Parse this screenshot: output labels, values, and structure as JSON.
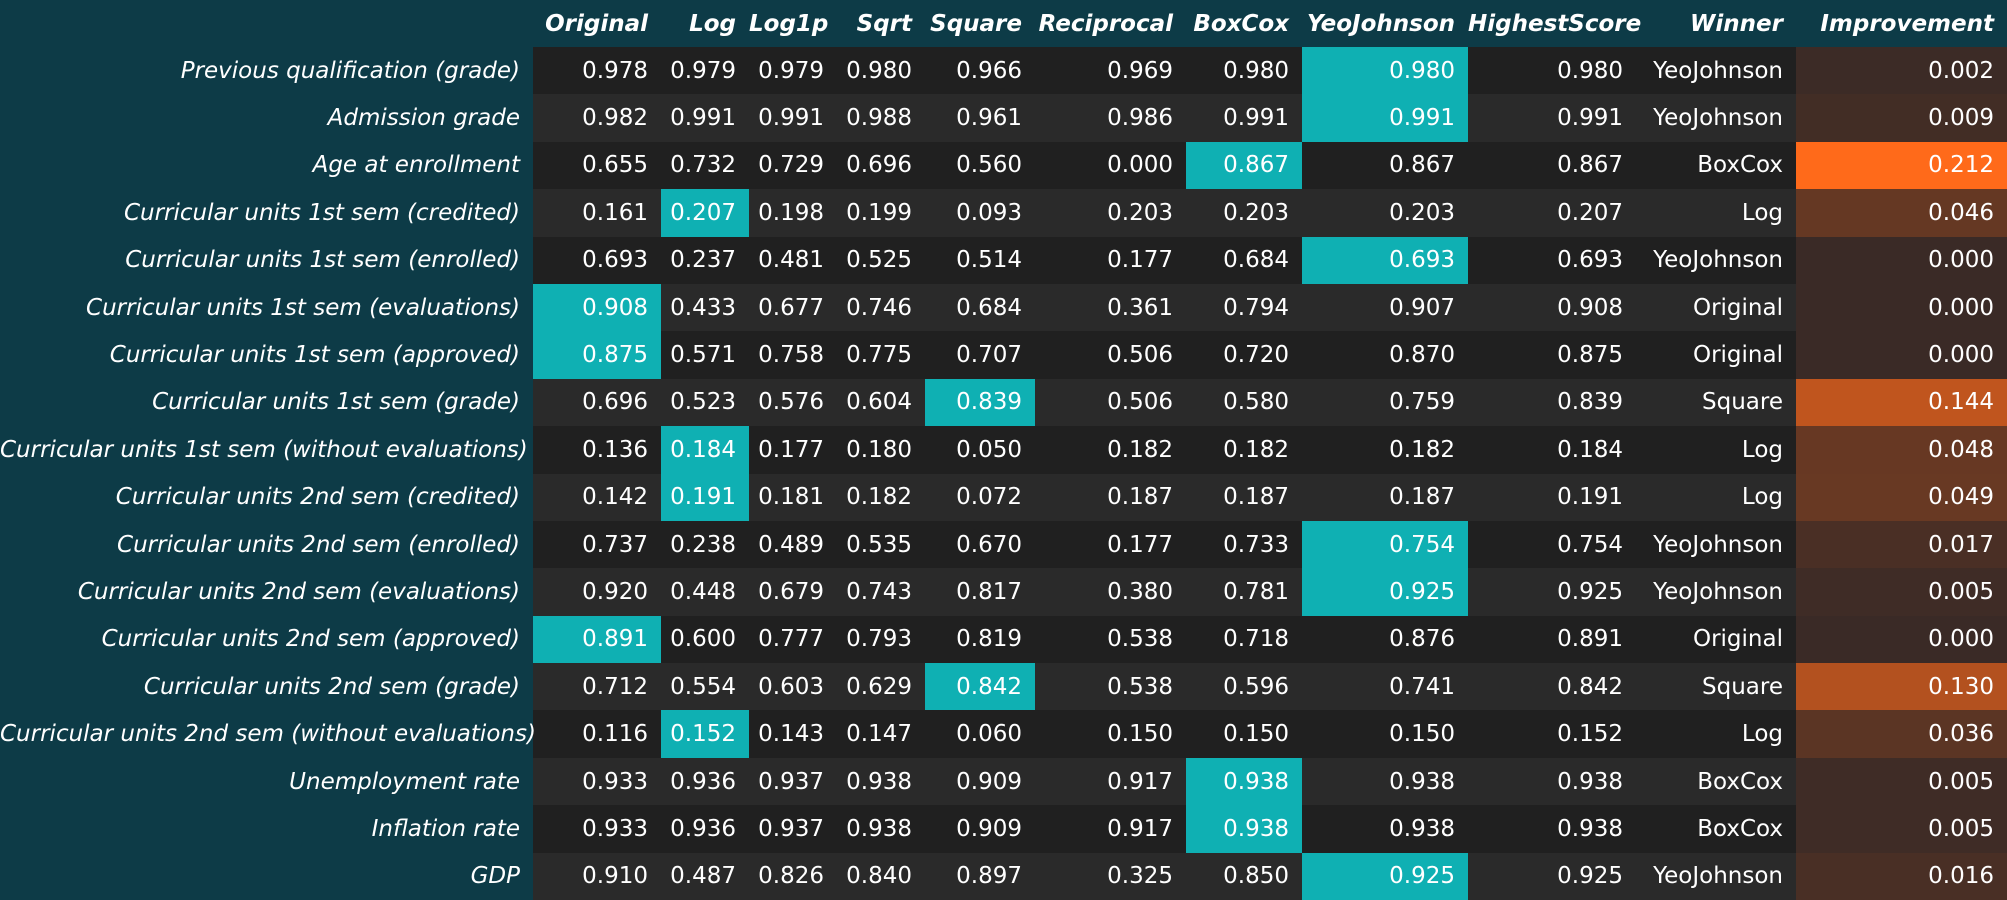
{
  "chart_data": {
    "type": "table",
    "columns": [
      "",
      "Original",
      "Log",
      "Log1p",
      "Sqrt",
      "Square",
      "Reciprocal",
      "BoxCox",
      "YeoJohnson",
      "HighestScore",
      "Winner",
      "Improvement"
    ],
    "score_columns": [
      "Original",
      "Log",
      "Log1p",
      "Sqrt",
      "Square",
      "Reciprocal",
      "BoxCox",
      "YeoJohnson"
    ],
    "rows": [
      {
        "label": "Previous qualification (grade)",
        "scores": [
          "0.978",
          "0.979",
          "0.979",
          "0.980",
          "0.966",
          "0.969",
          "0.980",
          "0.980"
        ],
        "highest": "0.980",
        "winner": "YeoJohnson",
        "improvement": "0.002"
      },
      {
        "label": "Admission grade",
        "scores": [
          "0.982",
          "0.991",
          "0.991",
          "0.988",
          "0.961",
          "0.986",
          "0.991",
          "0.991"
        ],
        "highest": "0.991",
        "winner": "YeoJohnson",
        "improvement": "0.009"
      },
      {
        "label": "Age at enrollment",
        "scores": [
          "0.655",
          "0.732",
          "0.729",
          "0.696",
          "0.560",
          "0.000",
          "0.867",
          "0.867"
        ],
        "highest": "0.867",
        "winner": "BoxCox",
        "improvement": "0.212"
      },
      {
        "label": "Curricular units 1st sem (credited)",
        "scores": [
          "0.161",
          "0.207",
          "0.198",
          "0.199",
          "0.093",
          "0.203",
          "0.203",
          "0.203"
        ],
        "highest": "0.207",
        "winner": "Log",
        "improvement": "0.046"
      },
      {
        "label": "Curricular units 1st sem (enrolled)",
        "scores": [
          "0.693",
          "0.237",
          "0.481",
          "0.525",
          "0.514",
          "0.177",
          "0.684",
          "0.693"
        ],
        "highest": "0.693",
        "winner": "YeoJohnson",
        "improvement": "0.000"
      },
      {
        "label": "Curricular units 1st sem (evaluations)",
        "scores": [
          "0.908",
          "0.433",
          "0.677",
          "0.746",
          "0.684",
          "0.361",
          "0.794",
          "0.907"
        ],
        "highest": "0.908",
        "winner": "Original",
        "improvement": "0.000"
      },
      {
        "label": "Curricular units 1st sem (approved)",
        "scores": [
          "0.875",
          "0.571",
          "0.758",
          "0.775",
          "0.707",
          "0.506",
          "0.720",
          "0.870"
        ],
        "highest": "0.875",
        "winner": "Original",
        "improvement": "0.000"
      },
      {
        "label": "Curricular units 1st sem (grade)",
        "scores": [
          "0.696",
          "0.523",
          "0.576",
          "0.604",
          "0.839",
          "0.506",
          "0.580",
          "0.759"
        ],
        "highest": "0.839",
        "winner": "Square",
        "improvement": "0.144"
      },
      {
        "label": "Curricular units 1st sem (without evaluations)",
        "scores": [
          "0.136",
          "0.184",
          "0.177",
          "0.180",
          "0.050",
          "0.182",
          "0.182",
          "0.182"
        ],
        "highest": "0.184",
        "winner": "Log",
        "improvement": "0.048"
      },
      {
        "label": "Curricular units 2nd sem (credited)",
        "scores": [
          "0.142",
          "0.191",
          "0.181",
          "0.182",
          "0.072",
          "0.187",
          "0.187",
          "0.187"
        ],
        "highest": "0.191",
        "winner": "Log",
        "improvement": "0.049"
      },
      {
        "label": "Curricular units 2nd sem (enrolled)",
        "scores": [
          "0.737",
          "0.238",
          "0.489",
          "0.535",
          "0.670",
          "0.177",
          "0.733",
          "0.754"
        ],
        "highest": "0.754",
        "winner": "YeoJohnson",
        "improvement": "0.017"
      },
      {
        "label": "Curricular units 2nd sem (evaluations)",
        "scores": [
          "0.920",
          "0.448",
          "0.679",
          "0.743",
          "0.817",
          "0.380",
          "0.781",
          "0.925"
        ],
        "highest": "0.925",
        "winner": "YeoJohnson",
        "improvement": "0.005"
      },
      {
        "label": "Curricular units 2nd sem (approved)",
        "scores": [
          "0.891",
          "0.600",
          "0.777",
          "0.793",
          "0.819",
          "0.538",
          "0.718",
          "0.876"
        ],
        "highest": "0.891",
        "winner": "Original",
        "improvement": "0.000"
      },
      {
        "label": "Curricular units 2nd sem (grade)",
        "scores": [
          "0.712",
          "0.554",
          "0.603",
          "0.629",
          "0.842",
          "0.538",
          "0.596",
          "0.741"
        ],
        "highest": "0.842",
        "winner": "Square",
        "improvement": "0.130"
      },
      {
        "label": "Curricular units 2nd sem (without evaluations)",
        "scores": [
          "0.116",
          "0.152",
          "0.143",
          "0.147",
          "0.060",
          "0.150",
          "0.150",
          "0.150"
        ],
        "highest": "0.152",
        "winner": "Log",
        "improvement": "0.036"
      },
      {
        "label": "Unemployment rate",
        "scores": [
          "0.933",
          "0.936",
          "0.937",
          "0.938",
          "0.909",
          "0.917",
          "0.938",
          "0.938"
        ],
        "highest": "0.938",
        "winner": "BoxCox",
        "improvement": "0.005"
      },
      {
        "label": "Inflation rate",
        "scores": [
          "0.933",
          "0.936",
          "0.937",
          "0.938",
          "0.909",
          "0.917",
          "0.938",
          "0.938"
        ],
        "highest": "0.938",
        "winner": "BoxCox",
        "improvement": "0.005"
      },
      {
        "label": "GDP",
        "scores": [
          "0.910",
          "0.487",
          "0.826",
          "0.840",
          "0.897",
          "0.325",
          "0.850",
          "0.925"
        ],
        "highest": "0.925",
        "winner": "YeoJohnson",
        "improvement": "0.016"
      }
    ],
    "colors": {
      "background": "#0d3b47",
      "row_odd": "#202020",
      "row_even": "#2a2a2a",
      "winner_highlight": "#0fb0b3",
      "improvement_low": "#3a2a26",
      "improvement_high": "#ff6a1a"
    }
  }
}
